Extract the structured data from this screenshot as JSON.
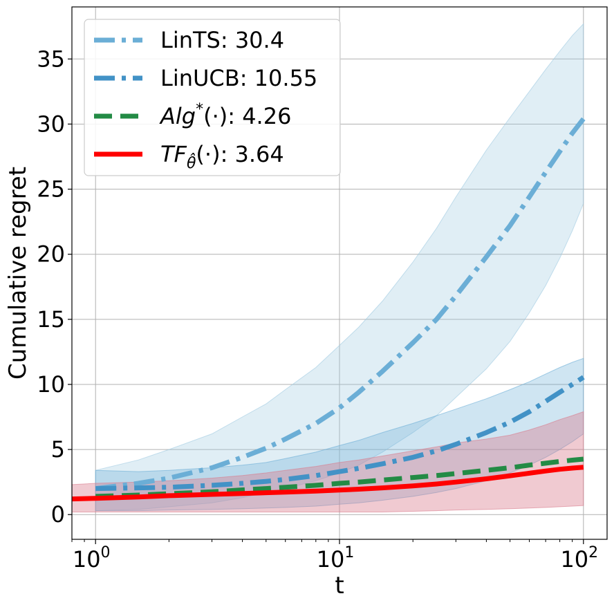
{
  "chart_data": {
    "type": "line",
    "xscale": "log",
    "xlabel": "t",
    "ylabel": "Cumulative regret",
    "xlim": [
      0.8,
      125
    ],
    "ylim": [
      -1.9,
      39
    ],
    "yticks": [
      0,
      5,
      10,
      15,
      20,
      25,
      30,
      35
    ],
    "xticks": [
      {
        "value": 1,
        "base": "10",
        "exp": "0"
      },
      {
        "value": 10,
        "base": "10",
        "exp": "1"
      },
      {
        "value": 100,
        "base": "10",
        "exp": "2"
      }
    ],
    "grid": true,
    "legend_position": "upper-left",
    "series": [
      {
        "name": "LinTS: 30.4",
        "legend_main": "LinTS: 30.4",
        "style": "dashdot",
        "color": "#6baed6",
        "band_color": "#9ecae1",
        "band_opacity": 0.32,
        "x": [
          1,
          1.5,
          2,
          3,
          4,
          5,
          6,
          8,
          10,
          12,
          15,
          20,
          25,
          30,
          40,
          50,
          60,
          70,
          80,
          90,
          100
        ],
        "y": [
          2.0,
          2.4,
          2.8,
          3.6,
          4.4,
          5.1,
          5.8,
          7.0,
          8.2,
          9.4,
          11.0,
          13.2,
          15.0,
          16.8,
          19.8,
          22.2,
          24.4,
          26.3,
          27.9,
          29.3,
          30.4
        ],
        "lower": [
          0.3,
          0.4,
          0.6,
          0.9,
          1.3,
          1.7,
          2.0,
          2.6,
          3.2,
          3.8,
          4.8,
          6.3,
          7.6,
          9.0,
          11.2,
          13.3,
          15.5,
          17.6,
          19.7,
          21.8,
          23.9
        ],
        "upper": [
          3.4,
          4.2,
          5.0,
          6.2,
          7.5,
          8.5,
          9.6,
          11.3,
          13.0,
          14.4,
          16.4,
          19.4,
          22.0,
          24.4,
          28.0,
          30.5,
          32.5,
          34.2,
          35.6,
          36.8,
          37.7
        ]
      },
      {
        "name": "LinUCB: 10.55",
        "legend_main": "LinUCB: 10.55",
        "style": "dashdot",
        "color": "#4292c6",
        "band_color": "#6baed6",
        "band_opacity": 0.32,
        "x": [
          1,
          1.5,
          2,
          3,
          4,
          5,
          6,
          8,
          10,
          12,
          15,
          20,
          25,
          30,
          40,
          50,
          60,
          70,
          80,
          90,
          100
        ],
        "y": [
          2.0,
          2.05,
          2.1,
          2.25,
          2.4,
          2.55,
          2.7,
          3.0,
          3.3,
          3.55,
          3.9,
          4.4,
          4.9,
          5.4,
          6.3,
          7.1,
          7.9,
          8.7,
          9.4,
          10.0,
          10.55
        ],
        "lower": [
          0.3,
          0.3,
          0.35,
          0.4,
          0.45,
          0.5,
          0.55,
          0.65,
          0.8,
          0.9,
          1.1,
          1.4,
          1.7,
          2.0,
          2.6,
          3.2,
          3.8,
          4.4,
          5.0,
          5.6,
          6.2
        ],
        "upper": [
          3.4,
          3.3,
          3.4,
          3.6,
          3.8,
          4.0,
          4.3,
          4.8,
          5.3,
          5.7,
          6.3,
          7.0,
          7.6,
          8.1,
          8.9,
          9.6,
          10.2,
          10.8,
          11.3,
          11.7,
          12.0
        ]
      },
      {
        "name": "Alg*(·): 4.26",
        "legend_main": "Alg",
        "legend_sup": "*",
        "legend_rest": "(·): 4.26",
        "style": "dashed",
        "color": "#238b45",
        "band_color": null,
        "x": [
          1,
          1.5,
          2,
          3,
          4,
          5,
          6,
          8,
          10,
          12,
          15,
          20,
          25,
          30,
          40,
          50,
          60,
          70,
          80,
          90,
          100
        ],
        "y": [
          1.4,
          1.5,
          1.6,
          1.75,
          1.9,
          2.0,
          2.1,
          2.25,
          2.4,
          2.5,
          2.65,
          2.85,
          3.0,
          3.15,
          3.4,
          3.6,
          3.8,
          3.95,
          4.08,
          4.18,
          4.26
        ]
      },
      {
        "name": "TFθ̂(·): 3.64",
        "legend_main": "TF",
        "legend_sub": "θ̂",
        "legend_rest": "(·): 3.64",
        "style": "solid",
        "color": "#ff0000",
        "band_color": "#d97b8c",
        "band_opacity": 0.4,
        "x": [
          0.8,
          1,
          1.5,
          2,
          3,
          4,
          5,
          6,
          8,
          10,
          12,
          15,
          20,
          25,
          30,
          40,
          50,
          60,
          70,
          80,
          90,
          100
        ],
        "y": [
          1.2,
          1.25,
          1.35,
          1.45,
          1.55,
          1.62,
          1.68,
          1.72,
          1.8,
          1.88,
          1.95,
          2.05,
          2.2,
          2.35,
          2.5,
          2.75,
          2.98,
          3.18,
          3.35,
          3.48,
          3.57,
          3.64
        ],
        "lower": [
          0.2,
          0.2,
          0.2,
          0.2,
          0.2,
          0.2,
          0.2,
          0.2,
          0.2,
          0.2,
          0.2,
          0.2,
          0.25,
          0.3,
          0.35,
          0.4,
          0.45,
          0.5,
          0.55,
          0.6,
          0.65,
          0.7
        ],
        "upper": [
          2.3,
          2.4,
          2.5,
          2.6,
          2.8,
          3.0,
          3.2,
          3.4,
          3.7,
          4.0,
          4.2,
          4.5,
          4.9,
          5.2,
          5.5,
          5.8,
          6.1,
          6.5,
          6.9,
          7.3,
          7.6,
          7.9
        ]
      }
    ]
  }
}
